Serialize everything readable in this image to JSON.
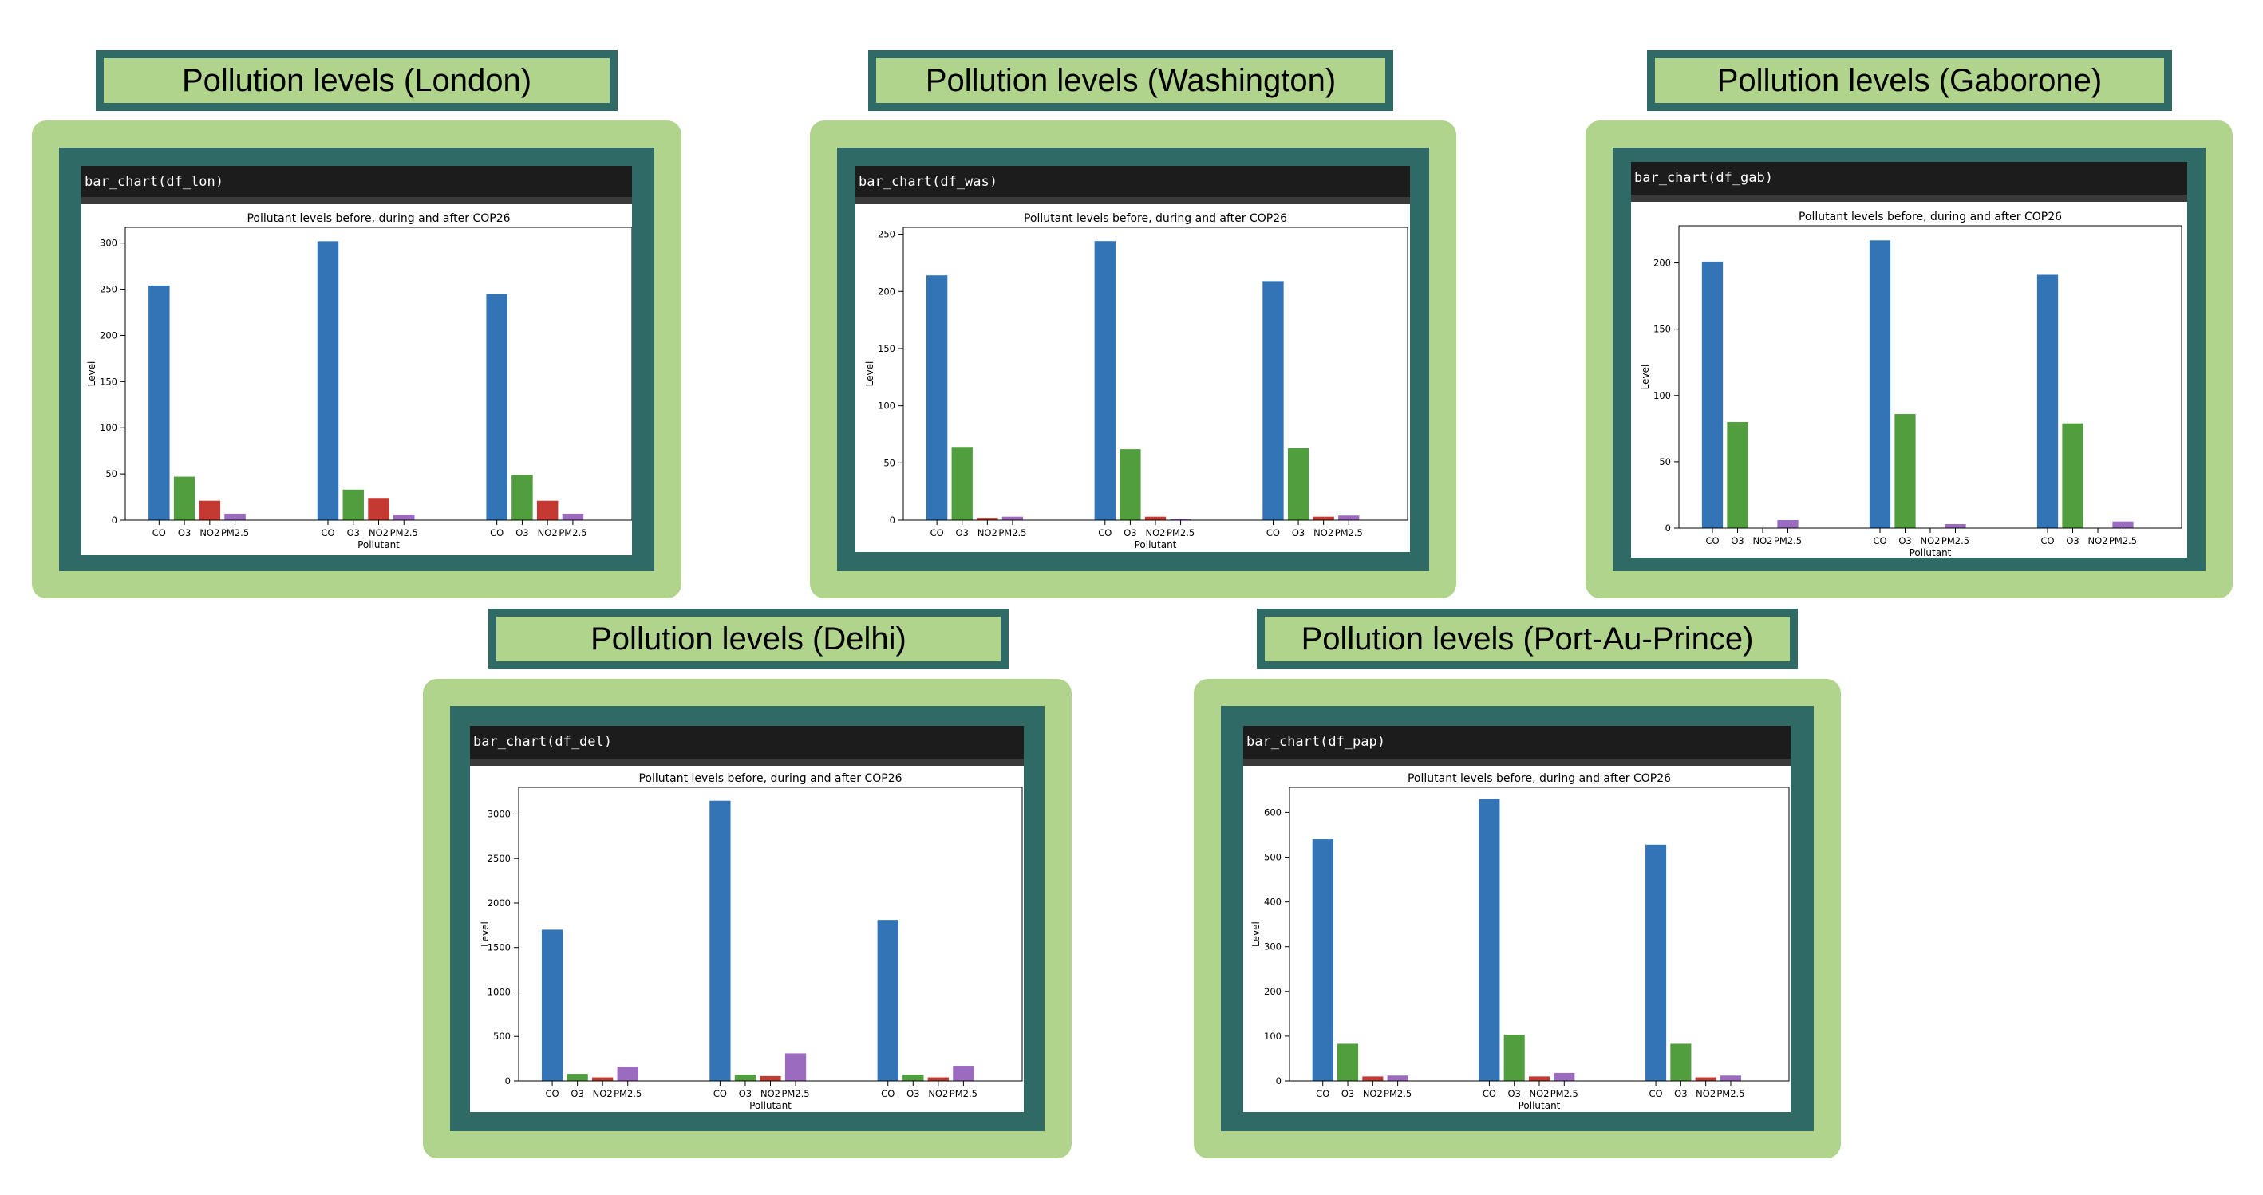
{
  "colors": {
    "CO": "#3274b5",
    "O3": "#519e3e",
    "NO2": "#c43a32",
    "PM2.5": "#9a6bbf",
    "frame_light": "#b0d48c",
    "frame_dark": "#2f6a66"
  },
  "chart_data": [
    {
      "type": "bar",
      "panel_title": "Pollution levels (London)",
      "code": "bar_chart(df_lon)",
      "title": "Pollutant levels before, during and after COP26",
      "xlabel": "Pollutant",
      "ylabel": "Level",
      "categories": [
        "CO",
        "O3",
        "NO2",
        "PM2.5",
        "CO",
        "O3",
        "NO2",
        "PM2.5",
        "CO",
        "O3",
        "NO2",
        "PM2.5"
      ],
      "values": [
        254,
        47,
        21,
        7,
        302,
        33,
        24,
        6,
        245,
        49,
        21,
        7
      ],
      "yticks": [
        0,
        50,
        100,
        150,
        200,
        250,
        300
      ],
      "ylim": [
        0,
        317
      ],
      "grid": false
    },
    {
      "type": "bar",
      "panel_title": "Pollution levels (Washington)",
      "code": "bar_chart(df_was)",
      "title": "Pollutant levels before, during and after COP26",
      "xlabel": "Pollutant",
      "ylabel": "Level",
      "categories": [
        "CO",
        "O3",
        "NO2",
        "PM2.5",
        "CO",
        "O3",
        "NO2",
        "PM2.5",
        "CO",
        "O3",
        "NO2",
        "PM2.5"
      ],
      "values": [
        214,
        64,
        2,
        3,
        244,
        62,
        3,
        1,
        209,
        63,
        3,
        4
      ],
      "yticks": [
        0,
        50,
        100,
        150,
        200,
        250
      ],
      "ylim": [
        0,
        256
      ],
      "grid": false
    },
    {
      "type": "bar",
      "panel_title": "Pollution levels (Gaborone)",
      "code": "bar_chart(df_gab)",
      "title": "Pollutant levels before, during and after COP26",
      "xlabel": "Pollutant",
      "ylabel": "Level",
      "categories": [
        "CO",
        "O3",
        "NO2",
        "PM2.5",
        "CO",
        "O3",
        "NO2",
        "PM2.5",
        "CO",
        "O3",
        "NO2",
        "PM2.5"
      ],
      "values": [
        201,
        80,
        0,
        6,
        217,
        86,
        0,
        3,
        191,
        79,
        0,
        5
      ],
      "yticks": [
        0,
        50,
        100,
        150,
        200
      ],
      "ylim": [
        0,
        228
      ],
      "grid": false
    },
    {
      "type": "bar",
      "panel_title": "Pollution levels (Delhi)",
      "code": "bar_chart(df_del)",
      "title": "Pollutant levels before, during and after COP26",
      "xlabel": "Pollutant",
      "ylabel": "Level",
      "categories": [
        "CO",
        "O3",
        "NO2",
        "PM2.5",
        "CO",
        "O3",
        "NO2",
        "PM2.5",
        "CO",
        "O3",
        "NO2",
        "PM2.5"
      ],
      "values": [
        1700,
        80,
        40,
        160,
        3150,
        70,
        55,
        310,
        1810,
        70,
        40,
        170
      ],
      "yticks": [
        0,
        500,
        1000,
        1500,
        2000,
        2500,
        3000
      ],
      "ylim": [
        0,
        3300
      ],
      "grid": false
    },
    {
      "type": "bar",
      "panel_title": "Pollution levels (Port-Au-Prince)",
      "code": "bar_chart(df_pap)",
      "title": "Pollutant levels before, during and after COP26",
      "xlabel": "Pollutant",
      "ylabel": "Level",
      "categories": [
        "CO",
        "O3",
        "NO2",
        "PM2.5",
        "CO",
        "O3",
        "NO2",
        "PM2.5",
        "CO",
        "O3",
        "NO2",
        "PM2.5"
      ],
      "values": [
        540,
        83,
        10,
        12,
        630,
        103,
        10,
        18,
        528,
        83,
        8,
        12
      ],
      "yticks": [
        0,
        100,
        200,
        300,
        400,
        500,
        600
      ],
      "ylim": [
        0,
        656
      ],
      "grid": false
    }
  ]
}
